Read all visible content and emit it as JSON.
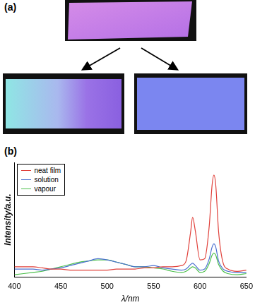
{
  "panel_labels": [
    "(a)",
    "(b)"
  ],
  "chart_data": {
    "type": "line",
    "x_label": "λ/nm",
    "y_label": "Intensity/a.u.",
    "x": [
      400,
      410,
      420,
      430,
      440,
      450,
      460,
      470,
      480,
      490,
      500,
      510,
      520,
      530,
      540,
      550,
      560,
      570,
      580,
      585,
      590,
      592,
      595,
      600,
      605,
      610,
      613,
      615,
      617,
      620,
      625,
      630,
      640,
      650
    ],
    "series": [
      {
        "name": "neat film",
        "color": "#e0403a",
        "values": [
          9,
          9,
          9,
          8,
          7,
          7,
          6,
          6,
          6,
          6,
          6,
          7,
          7,
          7,
          8,
          8,
          9,
          9,
          10,
          14,
          40,
          52,
          40,
          15,
          16,
          45,
          80,
          89,
          80,
          40,
          12,
          7,
          5,
          6
        ]
      },
      {
        "name": "solution",
        "color": "#4a6fd0",
        "values": [
          7,
          7,
          7,
          6,
          7,
          8,
          10,
          12,
          14,
          16,
          15,
          13,
          11,
          9,
          9,
          10,
          8,
          7,
          6,
          7,
          11,
          12,
          10,
          6,
          7,
          16,
          26,
          29,
          26,
          14,
          7,
          5,
          4,
          4
        ]
      },
      {
        "name": "vapour",
        "color": "#4ec04e",
        "values": [
          2,
          3,
          4,
          5,
          7,
          9,
          11,
          13,
          14,
          15,
          15,
          13,
          11,
          9,
          9,
          8,
          7,
          5,
          4,
          5,
          8,
          9,
          8,
          4,
          5,
          12,
          19,
          21,
          19,
          11,
          5,
          3,
          2,
          3
        ]
      }
    ],
    "xlim": [
      400,
      650
    ],
    "xticks": [
      400,
      450,
      500,
      550,
      600,
      650
    ],
    "ylim": [
      0,
      100
    ],
    "tick_labels": "x",
    "grid": false,
    "legend": "upper left"
  }
}
